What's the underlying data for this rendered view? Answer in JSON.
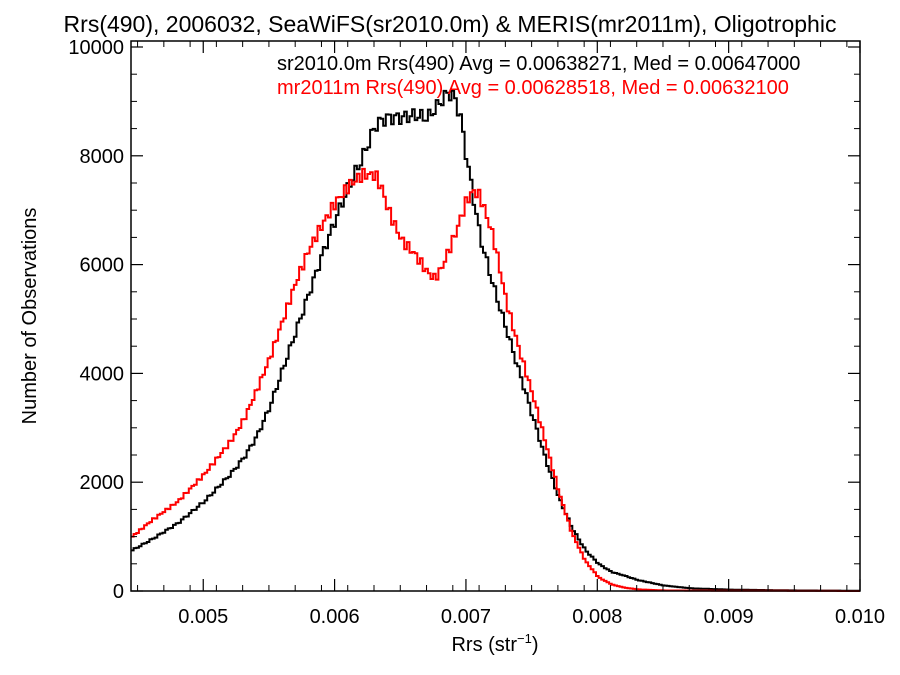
{
  "chart_data": {
    "type": "line",
    "title": "Rrs(490), 2006032, SeaWiFS(sr2010.0m) & MERIS(mr2011m), Oligotrophic",
    "xlabel": "Rrs (str",
    "xlabel_sup": "−1",
    "xlabel_close": ")",
    "ylabel": "Number of Observations",
    "xlim": [
      0.00445,
      0.01
    ],
    "ylim": [
      0,
      10000
    ],
    "xticks": [
      0.005,
      0.006,
      0.007,
      0.008,
      0.009,
      0.01
    ],
    "xtick_labels": [
      "0.005",
      "0.006",
      "0.007",
      "0.008",
      "0.009",
      "0.010"
    ],
    "yticks": [
      0,
      2000,
      4000,
      6000,
      8000,
      10000
    ],
    "ytick_labels": [
      "0",
      "2000",
      "4000",
      "6000",
      "8000",
      "10000"
    ],
    "grid": false,
    "legend_placement": "top-right",
    "series": [
      {
        "name": "sr2010.0m Rrs(490) Avg = 0.00638271, Med = 0.00647000",
        "color": "#000000",
        "x": [
          0.00445,
          0.0046,
          0.0048,
          0.005,
          0.0052,
          0.0053,
          0.0054,
          0.0055,
          0.0056,
          0.0057,
          0.0058,
          0.0059,
          0.006,
          0.0061,
          0.0062,
          0.00625,
          0.0063,
          0.00635,
          0.0064,
          0.0065,
          0.0066,
          0.0067,
          0.0068,
          0.00685,
          0.0069,
          0.00695,
          0.007,
          0.00705,
          0.0071,
          0.0072,
          0.0073,
          0.0074,
          0.0075,
          0.0076,
          0.0077,
          0.0078,
          0.0079,
          0.008,
          0.0081,
          0.0082,
          0.0083,
          0.0085,
          0.0087,
          0.009,
          0.0095,
          0.01
        ],
        "y": [
          750,
          950,
          1250,
          1650,
          2150,
          2450,
          2850,
          3400,
          4100,
          4800,
          5500,
          6200,
          6850,
          7450,
          7950,
          8250,
          8550,
          8650,
          8700,
          8700,
          8750,
          8700,
          9000,
          9150,
          9100,
          8700,
          7900,
          7200,
          6500,
          5600,
          4800,
          4000,
          3200,
          2400,
          1700,
          1150,
          750,
          500,
          350,
          280,
          200,
          100,
          50,
          25,
          10,
          5
        ]
      },
      {
        "name": "mr2011m Rrs(490) Avg = 0.00628518, Med = 0.00632100",
        "color": "#ff0000",
        "x": [
          0.00445,
          0.0046,
          0.0048,
          0.005,
          0.0052,
          0.0053,
          0.0054,
          0.0055,
          0.0056,
          0.0057,
          0.0058,
          0.0059,
          0.006,
          0.0061,
          0.0062,
          0.0063,
          0.00635,
          0.0064,
          0.0065,
          0.0066,
          0.0067,
          0.00675,
          0.0068,
          0.0069,
          0.007,
          0.00705,
          0.0071,
          0.0072,
          0.0073,
          0.0074,
          0.0075,
          0.0076,
          0.0077,
          0.0078,
          0.0079,
          0.008,
          0.0081,
          0.0082,
          0.0083,
          0.0085,
          0.009,
          0.01
        ],
        "y": [
          1000,
          1300,
          1650,
          2150,
          2750,
          3150,
          3700,
          4300,
          5000,
          5700,
          6300,
          6750,
          7150,
          7450,
          7650,
          7650,
          7400,
          7000,
          6450,
          6200,
          5850,
          5750,
          5900,
          6500,
          7200,
          7350,
          7250,
          6500,
          5300,
          4400,
          3600,
          2700,
          1800,
          1050,
          550,
          250,
          120,
          60,
          30,
          10,
          5,
          0
        ]
      }
    ]
  }
}
